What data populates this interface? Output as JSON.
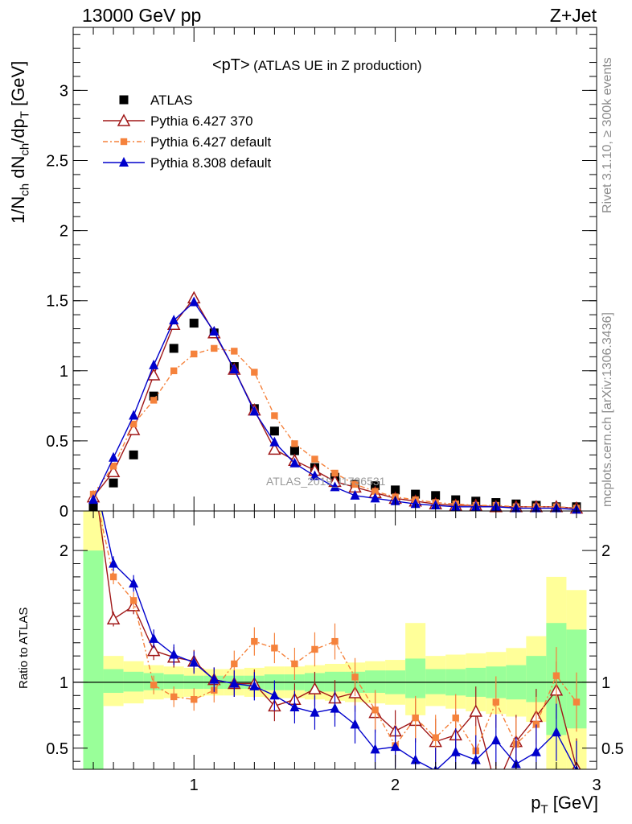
{
  "chart_data": [
    {
      "type": "line",
      "header_left": "13000 GeV pp",
      "header_right": "Z+Jet",
      "title_main": "<pT>",
      "title_sub": "(ATLAS UE in Z production)",
      "ylabel_text": "1/N",
      "ylabel_sub1": "ch",
      "ylabel_mid": " dN",
      "ylabel_sub2": "ch",
      "ylabel_mid2": "/dp",
      "ylabel_sub3": "T",
      "ylabel_unit": " [GeV]",
      "ylim": [
        0,
        3.45
      ],
      "yticks": [
        0,
        0.5,
        1,
        1.5,
        2,
        2.5,
        3
      ],
      "ytick_labels": [
        "0",
        "0.5",
        "1",
        "1.5",
        "2",
        "2.5",
        "3"
      ],
      "watermark": "ATLAS_2019_I1736531",
      "side_label_1": "Rivet 3.1.10, ≥ 300k events",
      "side_label_2": "mcplots.cern.ch [arXiv:1306.3436]",
      "x": [
        0.5,
        0.6,
        0.7,
        0.8,
        0.9,
        1.0,
        1.1,
        1.2,
        1.3,
        1.4,
        1.5,
        1.6,
        1.7,
        1.8,
        1.9,
        2.0,
        2.1,
        2.2,
        2.3,
        2.4,
        2.5,
        2.6,
        2.7,
        2.8,
        2.9
      ],
      "series": [
        {
          "name": "ATLAS",
          "color": "#000000",
          "values": [
            0.02,
            0.2,
            0.4,
            0.82,
            1.16,
            1.34,
            1.27,
            1.03,
            0.73,
            0.57,
            0.43,
            0.31,
            0.24,
            0.19,
            0.18,
            0.15,
            0.12,
            0.11,
            0.08,
            0.07,
            0.06,
            0.05,
            0.04,
            0.03,
            0.03
          ]
        },
        {
          "name": "Pythia 6.427 370",
          "color": "#a01818",
          "values": [
            0.1,
            0.28,
            0.58,
            0.97,
            1.33,
            1.52,
            1.27,
            1.01,
            0.72,
            0.44,
            0.36,
            0.29,
            0.21,
            0.17,
            0.13,
            0.09,
            0.07,
            0.05,
            0.04,
            0.04,
            0.03,
            0.03,
            0.03,
            0.03,
            0.02
          ]
        },
        {
          "name": "Pythia 6.427 default",
          "color": "#f5823c",
          "values": [
            0.12,
            0.32,
            0.62,
            0.79,
            1.0,
            1.12,
            1.16,
            1.14,
            0.99,
            0.68,
            0.48,
            0.37,
            0.27,
            0.19,
            0.14,
            0.1,
            0.08,
            0.06,
            0.05,
            0.04,
            0.04,
            0.03,
            0.03,
            0.03,
            0.02
          ]
        },
        {
          "name": "Pythia 8.308 default",
          "color": "#0000cc",
          "values": [
            0.08,
            0.38,
            0.68,
            1.04,
            1.36,
            1.49,
            1.28,
            1.01,
            0.71,
            0.49,
            0.34,
            0.25,
            0.17,
            0.11,
            0.09,
            0.07,
            0.05,
            0.04,
            0.03,
            0.03,
            0.03,
            0.02,
            0.02,
            0.02,
            0.01
          ]
        }
      ]
    },
    {
      "type": "line",
      "ylabel": "Ratio to ATLAS",
      "xlabel": "p",
      "xlabel_sub": "T",
      "xlabel_unit": " [GeV]",
      "xlim": [
        0.4,
        3.0
      ],
      "xticks": [
        1,
        2,
        3
      ],
      "xtick_labels": [
        "1",
        "2",
        "3"
      ],
      "ylim": [
        0.34,
        2.3
      ],
      "yticks": [
        0.5,
        1,
        2
      ],
      "ytick_labels": [
        "0.5",
        "1",
        "2"
      ],
      "x": [
        0.5,
        0.6,
        0.7,
        0.8,
        0.9,
        1.0,
        1.1,
        1.2,
        1.3,
        1.4,
        1.5,
        1.6,
        1.7,
        1.8,
        1.9,
        2.0,
        2.1,
        2.2,
        2.3,
        2.4,
        2.5,
        2.6,
        2.7,
        2.8,
        2.9
      ],
      "band_yellow": [
        [
          0.34,
          2.3
        ],
        [
          0.82,
          1.2
        ],
        [
          0.84,
          1.16
        ],
        [
          0.87,
          1.13
        ],
        [
          0.88,
          1.12
        ],
        [
          0.89,
          1.11
        ],
        [
          0.9,
          1.1
        ],
        [
          0.9,
          1.1
        ],
        [
          0.89,
          1.11
        ],
        [
          0.88,
          1.12
        ],
        [
          0.88,
          1.12
        ],
        [
          0.87,
          1.13
        ],
        [
          0.86,
          1.14
        ],
        [
          0.85,
          1.15
        ],
        [
          0.84,
          1.16
        ],
        [
          0.83,
          1.17
        ],
        [
          0.75,
          1.45
        ],
        [
          0.82,
          1.2
        ],
        [
          0.8,
          1.21
        ],
        [
          0.78,
          1.22
        ],
        [
          0.76,
          1.23
        ],
        [
          0.74,
          1.26
        ],
        [
          0.7,
          1.35
        ],
        [
          0.34,
          1.8
        ],
        [
          0.34,
          1.7
        ]
      ],
      "band_green": [
        [
          0.34,
          2.0
        ],
        [
          0.92,
          1.1
        ],
        [
          0.93,
          1.08
        ],
        [
          0.94,
          1.07
        ],
        [
          0.95,
          1.06
        ],
        [
          0.95,
          1.05
        ],
        [
          0.95,
          1.05
        ],
        [
          0.95,
          1.05
        ],
        [
          0.95,
          1.05
        ],
        [
          0.94,
          1.06
        ],
        [
          0.94,
          1.06
        ],
        [
          0.93,
          1.07
        ],
        [
          0.93,
          1.08
        ],
        [
          0.92,
          1.08
        ],
        [
          0.92,
          1.09
        ],
        [
          0.91,
          1.09
        ],
        [
          0.88,
          1.18
        ],
        [
          0.91,
          1.1
        ],
        [
          0.9,
          1.1
        ],
        [
          0.89,
          1.11
        ],
        [
          0.88,
          1.12
        ],
        [
          0.87,
          1.13
        ],
        [
          0.85,
          1.2
        ],
        [
          0.6,
          1.45
        ],
        [
          0.65,
          1.4
        ]
      ],
      "series": [
        {
          "name": "Pythia 6.427 370",
          "color": "#a01818",
          "values": [
            2.6,
            1.48,
            1.58,
            1.24,
            1.19,
            1.16,
            1.02,
            0.99,
            0.99,
            0.82,
            0.87,
            0.95,
            0.88,
            0.92,
            0.77,
            0.63,
            0.71,
            0.55,
            0.6,
            0.78,
            0.2,
            0.55,
            0.74,
            0.94,
            0.35
          ]
        },
        {
          "name": "Pythia 6.427 default",
          "color": "#f5823c",
          "values": [
            2.5,
            1.8,
            1.62,
            0.98,
            0.89,
            0.87,
            0.94,
            1.14,
            1.31,
            1.26,
            1.14,
            1.25,
            1.31,
            1.04,
            0.79,
            0.52,
            0.73,
            0.58,
            0.73,
            0.48,
            0.85,
            0.53,
            0.68,
            1.05,
            0.85
          ]
        },
        {
          "name": "Pythia 8.308 default",
          "color": "#0000cc",
          "values": [
            2.6,
            1.9,
            1.75,
            1.33,
            1.21,
            1.15,
            1.02,
            0.99,
            0.97,
            0.9,
            0.81,
            0.77,
            0.8,
            0.68,
            0.49,
            0.51,
            0.41,
            0.33,
            0.47,
            0.41,
            0.56,
            0.38,
            0.47,
            0.62,
            0.33
          ]
        }
      ]
    }
  ]
}
